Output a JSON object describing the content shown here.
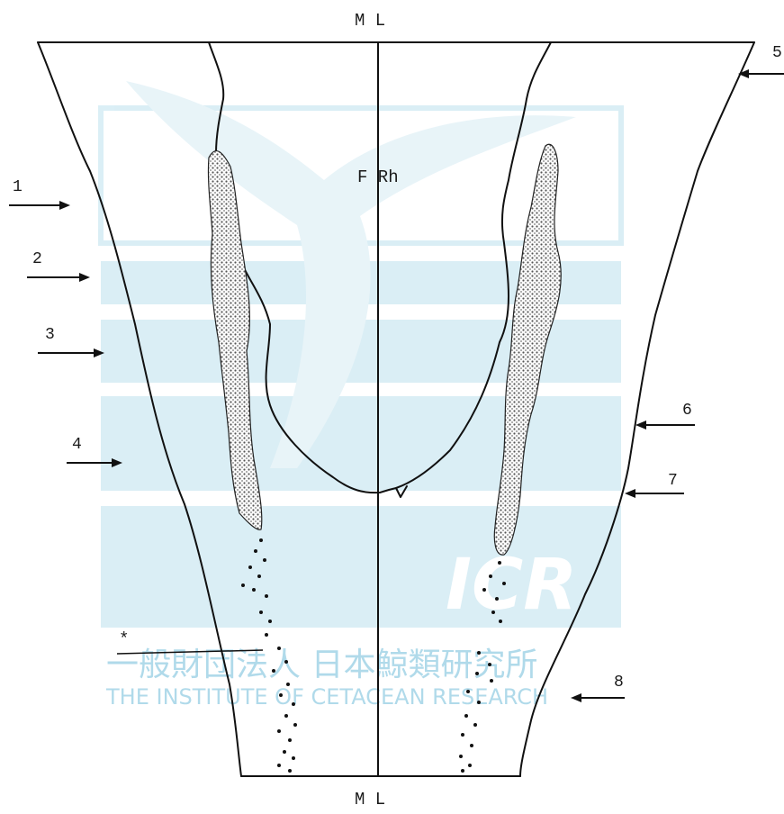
{
  "labels": {
    "top_midline": "M L",
    "bottom_midline": "M L",
    "center": "F Rh",
    "asterisk": "*",
    "numbers": [
      "1",
      "2",
      "3",
      "4",
      "5",
      "6",
      "7",
      "8"
    ]
  },
  "watermark": {
    "logo": "ICR",
    "japanese": "一般財団法人 日本鯨類研究所",
    "english": "THE INSTITUTE OF CETACEAN RESEARCH"
  },
  "colors": {
    "watermark_blue": "#d7edf5",
    "watermark_text": "#a8d6e8",
    "line": "#111111",
    "stipple": "#555555"
  }
}
